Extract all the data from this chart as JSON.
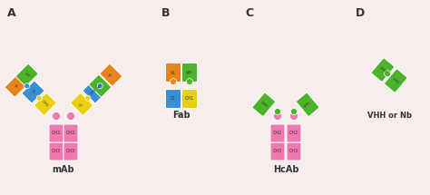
{
  "background_color": "#f7eded",
  "colors": {
    "green": "#4db32a",
    "orange": "#e8851a",
    "blue": "#3a8fd4",
    "yellow": "#e8d010",
    "pink": "#f078b0",
    "white": "#ffffff",
    "text": "#333333"
  },
  "labels": {
    "A": "A",
    "B": "B",
    "C": "C",
    "D": "D",
    "mAb": "mAb",
    "Fab": "Fab",
    "HcAb": "HcAb",
    "VHH": "VHH or Nb"
  }
}
